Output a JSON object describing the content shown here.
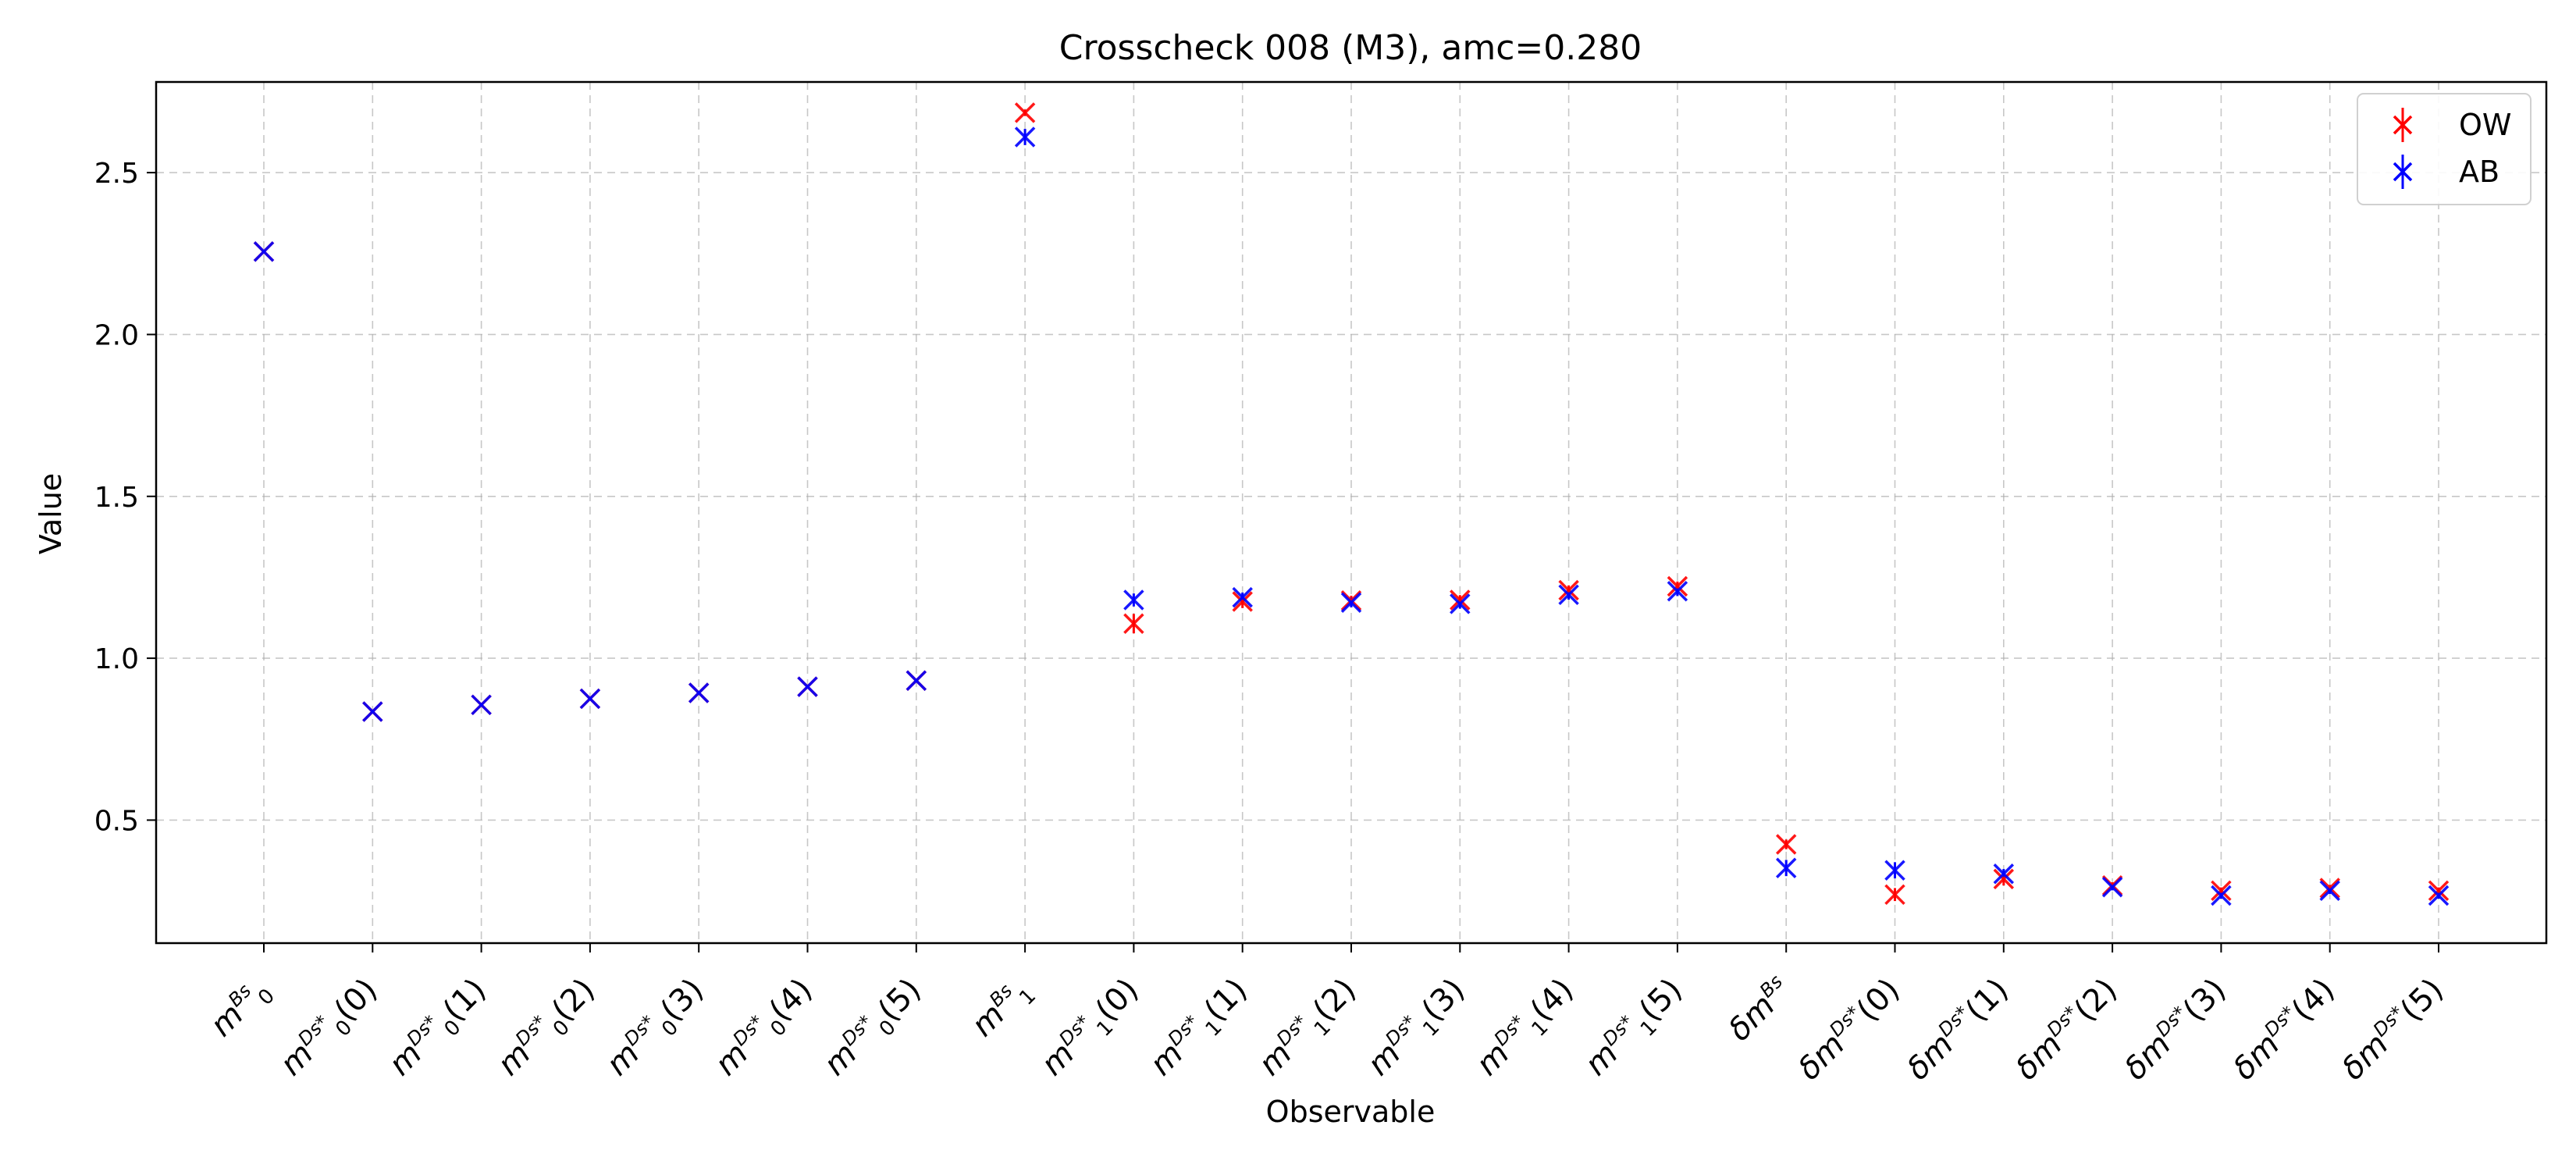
{
  "chart_data": {
    "type": "scatter",
    "title": "Crosscheck 008 (M3), amc=0.280",
    "xlabel": "Observable",
    "ylabel": "Value",
    "ylim": [
      0.12,
      2.78
    ],
    "yticks": [
      0.5,
      1.0,
      1.5,
      2.0,
      2.5
    ],
    "ytick_labels": [
      "0.5",
      "1.0",
      "1.5",
      "2.0",
      "2.5"
    ],
    "grid": true,
    "legend_position": "top-right",
    "categories": [
      {
        "base": "m",
        "sub": "0",
        "sup": "Bs",
        "arg": ""
      },
      {
        "base": "m",
        "sub": "0",
        "sup": "Ds*",
        "arg": "(0)"
      },
      {
        "base": "m",
        "sub": "0",
        "sup": "Ds*",
        "arg": "(1)"
      },
      {
        "base": "m",
        "sub": "0",
        "sup": "Ds*",
        "arg": "(2)"
      },
      {
        "base": "m",
        "sub": "0",
        "sup": "Ds*",
        "arg": "(3)"
      },
      {
        "base": "m",
        "sub": "0",
        "sup": "Ds*",
        "arg": "(4)"
      },
      {
        "base": "m",
        "sub": "0",
        "sup": "Ds*",
        "arg": "(5)"
      },
      {
        "base": "m",
        "sub": "1",
        "sup": "Bs",
        "arg": ""
      },
      {
        "base": "m",
        "sub": "1",
        "sup": "Ds*",
        "arg": "(0)"
      },
      {
        "base": "m",
        "sub": "1",
        "sup": "Ds*",
        "arg": "(1)"
      },
      {
        "base": "m",
        "sub": "1",
        "sup": "Ds*",
        "arg": "(2)"
      },
      {
        "base": "m",
        "sub": "1",
        "sup": "Ds*",
        "arg": "(3)"
      },
      {
        "base": "m",
        "sub": "1",
        "sup": "Ds*",
        "arg": "(4)"
      },
      {
        "base": "m",
        "sub": "1",
        "sup": "Ds*",
        "arg": "(5)"
      },
      {
        "base": "δm",
        "sub": "",
        "sup": "Bs",
        "arg": ""
      },
      {
        "base": "δm",
        "sub": "",
        "sup": "Ds*",
        "arg": "(0)"
      },
      {
        "base": "δm",
        "sub": "",
        "sup": "Ds*",
        "arg": "(1)"
      },
      {
        "base": "δm",
        "sub": "",
        "sup": "Ds*",
        "arg": "(2)"
      },
      {
        "base": "δm",
        "sub": "",
        "sup": "Ds*",
        "arg": "(3)"
      },
      {
        "base": "δm",
        "sub": "",
        "sup": "Ds*",
        "arg": "(4)"
      },
      {
        "base": "δm",
        "sub": "",
        "sup": "Ds*",
        "arg": "(5)"
      }
    ],
    "series": [
      {
        "name": "OW",
        "color": "#ff0000",
        "values": [
          2.256,
          0.835,
          0.856,
          0.875,
          0.893,
          0.912,
          0.931,
          2.685,
          1.107,
          1.175,
          1.178,
          1.18,
          1.21,
          1.222,
          0.425,
          0.27,
          0.318,
          0.298,
          0.282,
          0.29,
          0.282
        ],
        "errors": [
          0.003,
          0.003,
          0.003,
          0.003,
          0.003,
          0.003,
          0.003,
          0.01,
          0.03,
          0.02,
          0.015,
          0.015,
          0.015,
          0.015,
          0.015,
          0.02,
          0.02,
          0.01,
          0.01,
          0.01,
          0.01
        ]
      },
      {
        "name": "AB",
        "color": "#0000ff",
        "values": [
          2.256,
          0.835,
          0.856,
          0.875,
          0.893,
          0.912,
          0.931,
          2.61,
          1.18,
          1.188,
          1.172,
          1.168,
          1.196,
          1.207,
          0.352,
          0.345,
          0.334,
          0.293,
          0.267,
          0.282,
          0.267
        ],
        "errors": [
          0.003,
          0.003,
          0.003,
          0.003,
          0.003,
          0.003,
          0.003,
          0.025,
          0.02,
          0.015,
          0.015,
          0.015,
          0.015,
          0.015,
          0.025,
          0.025,
          0.015,
          0.01,
          0.01,
          0.01,
          0.01
        ]
      }
    ]
  }
}
